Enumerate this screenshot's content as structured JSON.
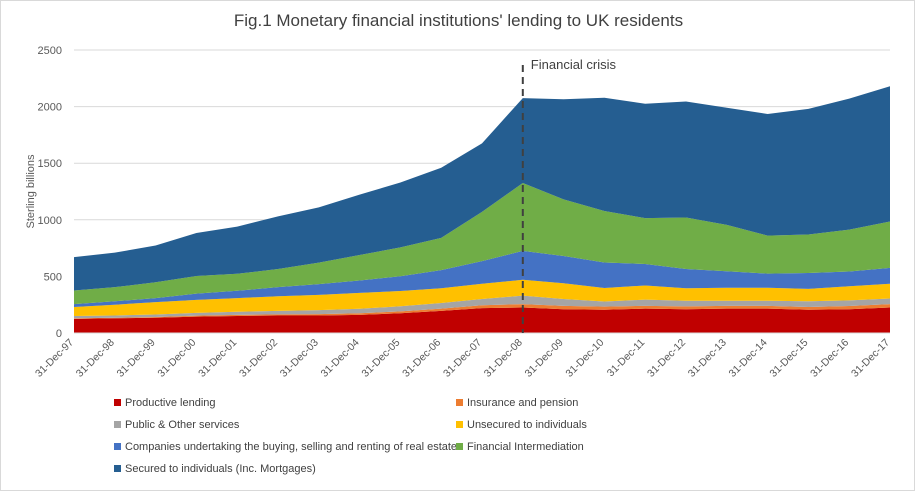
{
  "chart_data": {
    "type": "area",
    "stacked": true,
    "title": "Fig.1 Monetary financial institutions'  lending to UK residents",
    "ylabel": "Sterling billions",
    "xlabel": "",
    "ylim": [
      0,
      2500
    ],
    "yticks": [
      0,
      500,
      1000,
      1500,
      2000,
      2500
    ],
    "grid": true,
    "legend_position": "bottom",
    "categories": [
      "31-Dec-97",
      "31-Dec-98",
      "31-Dec-99",
      "31-Dec-00",
      "31-Dec-01",
      "31-Dec-02",
      "31-Dec-03",
      "31-Dec-04",
      "31-Dec-05",
      "31-Dec-06",
      "31-Dec-07",
      "31-Dec-08",
      "31-Dec-09",
      "31-Dec-10",
      "31-Dec-11",
      "31-Dec-12",
      "31-Dec-13",
      "31-Dec-14",
      "31-Dec-15",
      "31-Dec-16",
      "31-Dec-17"
    ],
    "series": [
      {
        "name": "Productive lending",
        "color": "#c00000",
        "values": [
          125,
          130,
          135,
          145,
          150,
          155,
          155,
          160,
          175,
          195,
          220,
          225,
          210,
          205,
          215,
          210,
          215,
          215,
          205,
          210,
          225
        ]
      },
      {
        "name": "Insurance and pension",
        "color": "#ed7d31",
        "values": [
          5,
          5,
          6,
          8,
          10,
          10,
          12,
          14,
          16,
          20,
          25,
          30,
          30,
          28,
          25,
          25,
          25,
          25,
          25,
          28,
          30
        ]
      },
      {
        "name": "Public & Other services",
        "color": "#a5a5a5",
        "values": [
          20,
          20,
          22,
          25,
          28,
          30,
          35,
          40,
          45,
          50,
          55,
          75,
          60,
          45,
          55,
          50,
          45,
          45,
          50,
          50,
          50
        ]
      },
      {
        "name": "Unsecured to individuals",
        "color": "#ffc000",
        "values": [
          80,
          95,
          110,
          115,
          120,
          130,
          135,
          140,
          135,
          130,
          135,
          140,
          140,
          120,
          125,
          110,
          115,
          115,
          110,
          125,
          130
        ]
      },
      {
        "name": "Companies undertaking the buying, selling and renting of real estate",
        "color": "#4472c4",
        "values": [
          25,
          30,
          35,
          55,
          65,
          80,
          95,
          110,
          130,
          160,
          200,
          255,
          240,
          225,
          190,
          170,
          145,
          125,
          140,
          130,
          140
        ]
      },
      {
        "name": "Financial Intermediation",
        "color": "#70ad47",
        "values": [
          120,
          125,
          140,
          155,
          150,
          160,
          190,
          225,
          255,
          285,
          435,
          600,
          500,
          455,
          405,
          455,
          410,
          335,
          340,
          370,
          410
        ]
      },
      {
        "name": "Secured to individuals (Inc. Mortgages)",
        "color": "#255e91",
        "values": [
          295,
          305,
          325,
          380,
          417,
          465,
          488,
          533,
          574,
          620,
          605,
          750,
          885,
          1000,
          1010,
          1025,
          1035,
          1075,
          1110,
          1157,
          1195
        ]
      }
    ],
    "annotation": {
      "label": "Financial crisis",
      "x_category": "31-Dec-08"
    }
  }
}
